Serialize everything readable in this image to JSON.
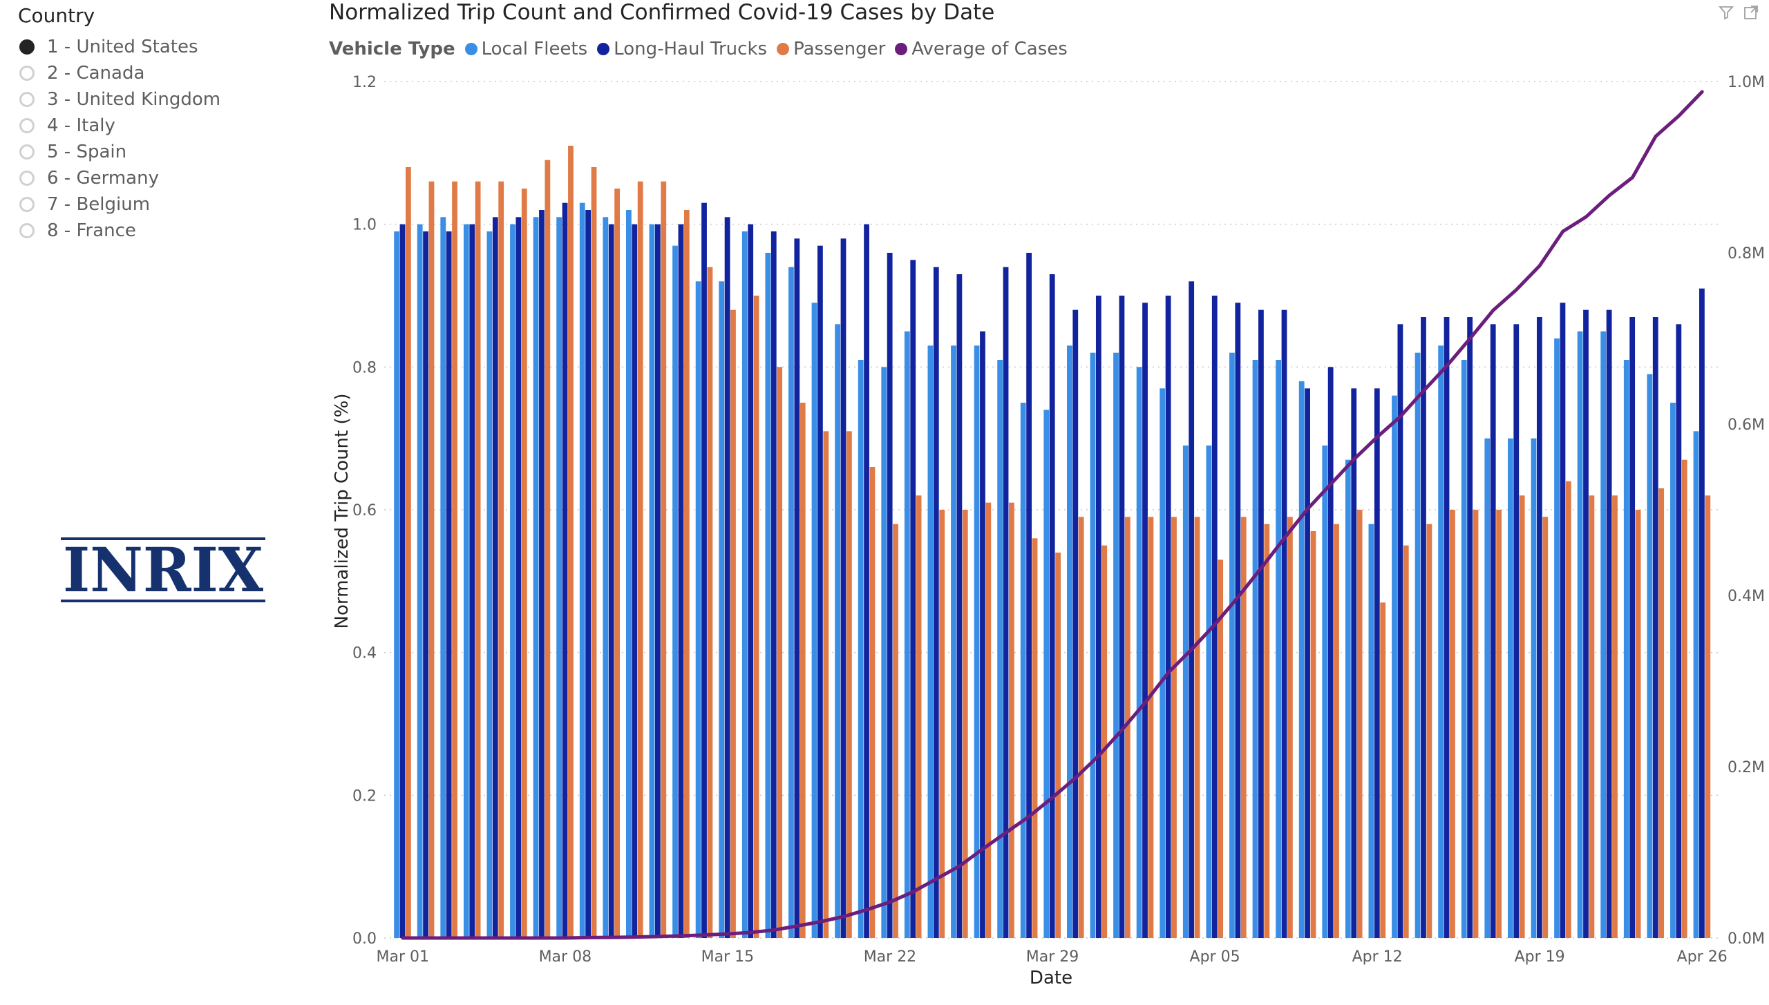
{
  "slicer": {
    "title": "Country",
    "items": [
      {
        "label": "1 - United States",
        "selected": true
      },
      {
        "label": "2 - Canada",
        "selected": false
      },
      {
        "label": "3 - United Kingdom",
        "selected": false
      },
      {
        "label": "4 - Italy",
        "selected": false
      },
      {
        "label": "5 - Spain",
        "selected": false
      },
      {
        "label": "6 - Germany",
        "selected": false
      },
      {
        "label": "7 - Belgium",
        "selected": false
      },
      {
        "label": "8 - France",
        "selected": false
      }
    ]
  },
  "logo": {
    "text": "INRIX",
    "color": "#16326e"
  },
  "header_icons": [
    "filter-icon",
    "focus-mode-icon"
  ],
  "chart_data": {
    "type": "bar",
    "title": "Normalized Trip Count and Confirmed Covid-19 Cases by Date",
    "legend_title": "Vehicle Type",
    "legend_position": "top-left",
    "xlabel": "Date",
    "ylabel": "Normalized Trip Count (%)",
    "ylim": [
      0,
      1.2
    ],
    "y_ticks": [
      "0.0",
      "0.2",
      "0.4",
      "0.6",
      "0.8",
      "1.0",
      "1.2"
    ],
    "y2lim": [
      0,
      1000000
    ],
    "y2_ticks": [
      "0.0M",
      "0.2M",
      "0.4M",
      "0.6M",
      "0.8M",
      "1.0M"
    ],
    "grid": true,
    "x": [
      "Mar 01",
      "Mar 02",
      "Mar 03",
      "Mar 04",
      "Mar 05",
      "Mar 06",
      "Mar 07",
      "Mar 08",
      "Mar 09",
      "Mar 10",
      "Mar 11",
      "Mar 12",
      "Mar 13",
      "Mar 14",
      "Mar 15",
      "Mar 16",
      "Mar 17",
      "Mar 18",
      "Mar 19",
      "Mar 20",
      "Mar 21",
      "Mar 22",
      "Mar 23",
      "Mar 24",
      "Mar 25",
      "Mar 26",
      "Mar 27",
      "Mar 28",
      "Mar 29",
      "Mar 30",
      "Mar 31",
      "Apr 01",
      "Apr 02",
      "Apr 03",
      "Apr 04",
      "Apr 05",
      "Apr 06",
      "Apr 07",
      "Apr 08",
      "Apr 09",
      "Apr 10",
      "Apr 11",
      "Apr 12",
      "Apr 13",
      "Apr 14",
      "Apr 15",
      "Apr 16",
      "Apr 17",
      "Apr 18",
      "Apr 19",
      "Apr 20",
      "Apr 21",
      "Apr 22",
      "Apr 23",
      "Apr 24",
      "Apr 25",
      "Apr 26"
    ],
    "x_tick_labels": [
      "Mar 01",
      "Mar 08",
      "Mar 15",
      "Mar 22",
      "Mar 29",
      "Apr 05",
      "Apr 12",
      "Apr 19",
      "Apr 26"
    ],
    "series": [
      {
        "name": "Local Fleets",
        "color": "#3a8ee6",
        "axis": "left",
        "kind": "bar",
        "values": [
          0.99,
          1.0,
          1.01,
          1.0,
          0.99,
          1.0,
          1.01,
          1.01,
          1.03,
          1.01,
          1.02,
          1.0,
          0.97,
          0.92,
          0.92,
          0.99,
          0.96,
          0.94,
          0.89,
          0.86,
          0.81,
          0.8,
          0.85,
          0.83,
          0.83,
          0.83,
          0.81,
          0.75,
          0.74,
          0.83,
          0.82,
          0.82,
          0.8,
          0.77,
          0.69,
          0.69,
          0.82,
          0.81,
          0.81,
          0.78,
          0.69,
          0.67,
          0.58,
          0.76,
          0.82,
          0.83,
          0.81,
          0.7,
          0.7,
          0.7,
          0.84,
          0.85,
          0.85,
          0.81,
          0.79,
          0.75,
          0.71
        ]
      },
      {
        "name": "Long-Haul Trucks",
        "color": "#12239e",
        "axis": "left",
        "kind": "bar",
        "values": [
          1.0,
          0.99,
          0.99,
          1.0,
          1.01,
          1.01,
          1.02,
          1.03,
          1.02,
          1.0,
          1.0,
          1.0,
          1.0,
          1.03,
          1.01,
          1.0,
          0.99,
          0.98,
          0.97,
          0.98,
          1.0,
          0.96,
          0.95,
          0.94,
          0.93,
          0.85,
          0.94,
          0.96,
          0.93,
          0.88,
          0.9,
          0.9,
          0.89,
          0.9,
          0.92,
          0.9,
          0.89,
          0.88,
          0.88,
          0.77,
          0.8,
          0.77,
          0.77,
          0.86,
          0.87,
          0.87,
          0.87,
          0.86,
          0.86,
          0.87,
          0.89,
          0.88,
          0.88,
          0.87,
          0.87,
          0.86,
          0.91
        ]
      },
      {
        "name": "Passenger",
        "color": "#e07b47",
        "axis": "left",
        "kind": "bar",
        "values": [
          1.08,
          1.06,
          1.06,
          1.06,
          1.06,
          1.05,
          1.09,
          1.11,
          1.08,
          1.05,
          1.06,
          1.06,
          1.02,
          0.94,
          0.88,
          0.9,
          0.8,
          0.75,
          0.71,
          0.71,
          0.66,
          0.58,
          0.62,
          0.6,
          0.6,
          0.61,
          0.61,
          0.56,
          0.54,
          0.59,
          0.55,
          0.59,
          0.59,
          0.59,
          0.59,
          0.53,
          0.59,
          0.58,
          0.59,
          0.57,
          0.58,
          0.6,
          0.47,
          0.55,
          0.58,
          0.6,
          0.6,
          0.6,
          0.62,
          0.59,
          0.64,
          0.62,
          0.62,
          0.6,
          0.63,
          0.67,
          0.62
        ]
      },
      {
        "name": "Average of Cases",
        "color": "#6b1e7c",
        "axis": "right",
        "kind": "line",
        "values": [
          0,
          0,
          0,
          0,
          0,
          0,
          0,
          0,
          500,
          700,
          1100,
          1700,
          2500,
          3500,
          4700,
          6500,
          9300,
          14000,
          19000,
          25000,
          33000,
          42000,
          54000,
          69000,
          84000,
          104000,
          123000,
          142000,
          164000,
          187000,
          213000,
          243000,
          275000,
          310000,
          337000,
          366000,
          398000,
          432000,
          467000,
          501000,
          530000,
          559000,
          585000,
          609000,
          639000,
          668000,
          700000,
          733000,
          757000,
          785000,
          825000,
          842000,
          867000,
          888000,
          936000,
          960000,
          988000
        ]
      }
    ]
  }
}
